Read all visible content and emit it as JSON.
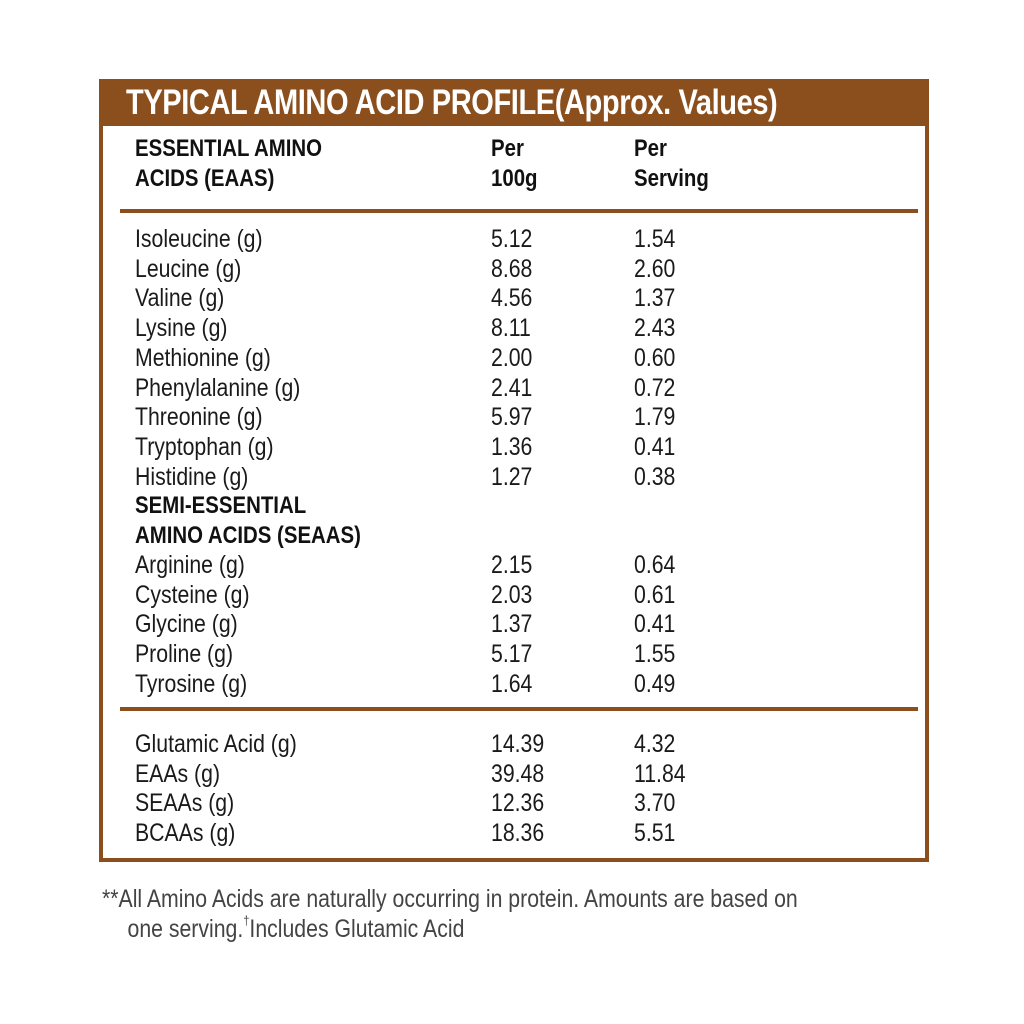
{
  "title": "TYPICAL AMINO ACID PROFILE(Approx. Values)",
  "colors": {
    "accent": "#8a4f1c",
    "text": "#1a1a1a",
    "footnote": "#444444"
  },
  "header": {
    "col1_line1": "ESSENTIAL AMINO",
    "col1_line2": "ACIDS (EAAS)",
    "col2_line1": "Per",
    "col2_line2": "100g",
    "col3_line1": "Per",
    "col3_line2": "Serving"
  },
  "essential": [
    {
      "name": "Isoleucine (g)",
      "per100g": "5.12",
      "perServing": "1.54"
    },
    {
      "name": "Leucine (g)",
      "per100g": "8.68",
      "perServing": "2.60"
    },
    {
      "name": "Valine (g)",
      "per100g": "4.56",
      "perServing": "1.37"
    },
    {
      "name": "Lysine (g)",
      "per100g": "8.11",
      "perServing": "2.43"
    },
    {
      "name": "Methionine (g)",
      "per100g": "2.00",
      "perServing": "0.60"
    },
    {
      "name": "Phenylalanine (g)",
      "per100g": "2.41",
      "perServing": "0.72"
    },
    {
      "name": "Threonine (g)",
      "per100g": "5.97",
      "perServing": "1.79"
    },
    {
      "name": "Tryptophan (g)",
      "per100g": "1.36",
      "perServing": "0.41"
    },
    {
      "name": "Histidine (g)",
      "per100g": "1.27",
      "perServing": "0.38"
    }
  ],
  "semi_essential_heading": {
    "line1": "SEMI-ESSENTIAL",
    "line2": "AMINO ACIDS (SEAAS)"
  },
  "semi_essential": [
    {
      "name": "Arginine (g)",
      "per100g": "2.15",
      "perServing": "0.64"
    },
    {
      "name": "Cysteine (g)",
      "per100g": "2.03",
      "perServing": "0.61"
    },
    {
      "name": "Glycine (g)",
      "per100g": "1.37",
      "perServing": "0.41"
    },
    {
      "name": "Proline (g)",
      "per100g": "5.17",
      "perServing": "1.55"
    },
    {
      "name": "Tyrosine (g)",
      "per100g": "1.64",
      "perServing": "0.49"
    }
  ],
  "totals": [
    {
      "name": "Glutamic Acid (g)",
      "per100g": "14.39",
      "perServing": "4.32"
    },
    {
      "name": "EAAs (g)",
      "per100g": "39.48",
      "perServing": "11.84"
    },
    {
      "name": "SEAAs (g)",
      "per100g": "12.36",
      "perServing": "3.70"
    },
    {
      "name": "BCAAs (g)",
      "per100g": "18.36",
      "perServing": "5.51"
    }
  ],
  "footnote": {
    "line1": "**All Amino Acids are naturally occurring in protein. Amounts are based on",
    "line2_a": "one serving.",
    "dagger": "†",
    "line2_b": "Includes Glutamic Acid"
  }
}
